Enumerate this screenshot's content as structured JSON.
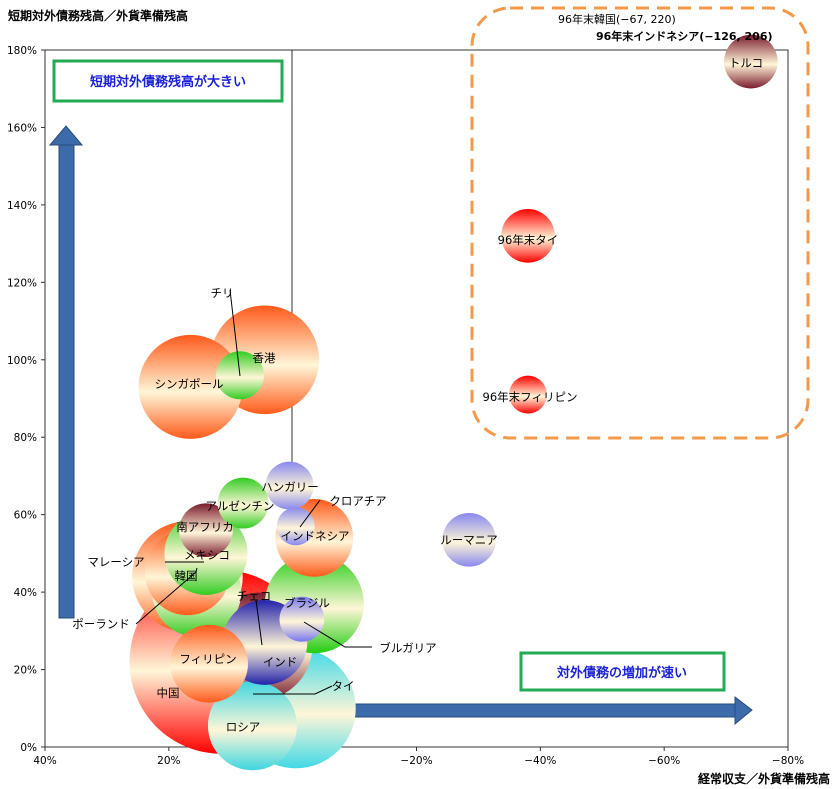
{
  "chart_data": {
    "type": "bubble",
    "ylabel": "短期対外債務残高／外貨準備残高",
    "xlabel": "経常収支／外貨準備残高",
    "xlim": [
      40,
      -80
    ],
    "ylim": [
      0,
      180
    ],
    "x_ticks": [
      "40%",
      "20%",
      "0%",
      "−20%",
      "−40%",
      "−60%",
      "−80%"
    ],
    "y_ticks": [
      "0%",
      "20%",
      "40%",
      "60%",
      "80%",
      "100%",
      "120%",
      "140%",
      "160%",
      "180%"
    ],
    "grid": false,
    "bubbles": [
      {
        "label": "中国",
        "x": 11.5,
        "y": 22,
        "size": 2.35,
        "color": "#ff0000"
      },
      {
        "label": "タイ",
        "x": -0.5,
        "y": 10,
        "size": 1.0,
        "color": "#40d9e6"
      },
      {
        "label": "ロシア",
        "x": 6.5,
        "y": 5.5,
        "size": 0.55,
        "color": "#3fd6e0"
      },
      {
        "label": "インド",
        "x": 5.5,
        "y": 26,
        "size": 0.8,
        "color": "#7a1a2c"
      },
      {
        "label": "フィリピン",
        "x": 13.5,
        "y": 21.5,
        "size": 0.42,
        "color": "#ff5a1a"
      },
      {
        "label": "チェコ",
        "x": 4.5,
        "y": 27,
        "size": 0.5,
        "color": "#2222aa"
      },
      {
        "label": "ブラジル",
        "x": -3.5,
        "y": 37,
        "size": 0.68,
        "color": "#22cc11"
      },
      {
        "label": "ブルガリア",
        "x": -1.5,
        "y": 33,
        "size": 0.14,
        "color": "#7777ee"
      },
      {
        "label": "韓国",
        "x": 17,
        "y": 44,
        "size": 0.85,
        "color": "#ff5a1a"
      },
      {
        "label": "マレーシア",
        "x": 17,
        "y": 45,
        "size": 0.5,
        "color": "#ff5a1a"
      },
      {
        "label": "メキシコ",
        "x": 14,
        "y": 50,
        "size": 0.48,
        "color": "#33cc22"
      },
      {
        "label": "ポーランド",
        "x": 15.5,
        "y": 40,
        "size": 0.55,
        "color": "#33cc22"
      },
      {
        "label": "南アフリカ",
        "x": 14,
        "y": 56,
        "size": 0.2,
        "color": "#7a1a2c"
      },
      {
        "label": "アルゼンチン",
        "x": 8,
        "y": 63,
        "size": 0.18,
        "color": "#33cc22"
      },
      {
        "label": "ハンガリー",
        "x": 0.5,
        "y": 67.5,
        "size": 0.16,
        "color": "#8888ee"
      },
      {
        "label": "クロアチア",
        "x": -0.5,
        "y": 57,
        "size": 0.1,
        "color": "#8888ee"
      },
      {
        "label": "インドネシア",
        "x": -3.5,
        "y": 54,
        "size": 0.42,
        "color": "#ff5a1a"
      },
      {
        "label": "ルーマニア",
        "x": -28.5,
        "y": 53.5,
        "size": 0.2,
        "color": "#8888ee"
      },
      {
        "label": "香港",
        "x": 4.5,
        "y": 100,
        "size": 0.82,
        "color": "#ff5a1a"
      },
      {
        "label": "チリ",
        "x": 8.5,
        "y": 96,
        "size": 0.16,
        "color": "#33cc22"
      },
      {
        "label": "シンガポール",
        "x": 16.5,
        "y": 93,
        "size": 0.75,
        "color": "#ff5a1a"
      },
      {
        "label": "トルコ",
        "x": -74,
        "y": 177,
        "size": 0.2,
        "color": "#7a1a2c"
      },
      {
        "label": "96年末タイ",
        "x": -38,
        "y": 132,
        "size": 0.2,
        "color": "#ff0000"
      },
      {
        "label": "96年末フィリピン",
        "x": -38,
        "y": 91,
        "size": 0.1,
        "color": "#ff0000"
      }
    ],
    "offscale_notes": [
      "96年末韓国(−67, 220)",
      "96年末インドネシア(−126, 206)"
    ],
    "annotations": [
      "短期対外債務残高が大きい",
      "対外債務の増加が速い"
    ]
  }
}
